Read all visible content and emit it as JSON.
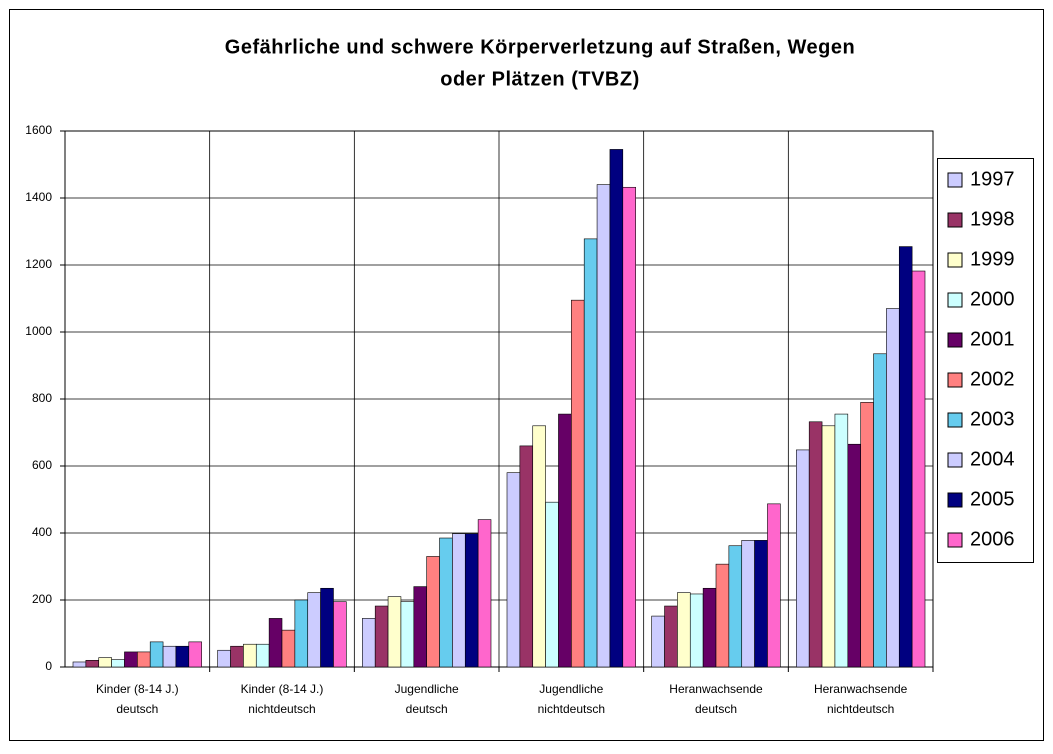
{
  "chart_data": {
    "type": "bar",
    "title": [
      "Gefährliche und schwere Körperverletzung auf Straßen, Wegen",
      "oder Plätzen (TVBZ)"
    ],
    "categories": [
      [
        "Kinder (8-14 J.)",
        "deutsch"
      ],
      [
        "Kinder (8-14 J.)",
        "nichtdeutsch"
      ],
      [
        "Jugendliche",
        "deutsch"
      ],
      [
        "Jugendliche",
        "nichtdeutsch"
      ],
      [
        "Heranwachsende",
        "deutsch"
      ],
      [
        "Heranwachsende",
        "nichtdeutsch"
      ]
    ],
    "series": [
      {
        "name": "1997",
        "color": "#ccccff",
        "values": [
          15,
          50,
          145,
          580,
          152,
          648
        ]
      },
      {
        "name": "1998",
        "color": "#993366",
        "values": [
          20,
          62,
          182,
          660,
          182,
          732
        ]
      },
      {
        "name": "1999",
        "color": "#ffffcc",
        "values": [
          28,
          68,
          210,
          720,
          222,
          720
        ]
      },
      {
        "name": "2000",
        "color": "#ccffff",
        "values": [
          22,
          68,
          195,
          492,
          218,
          755
        ]
      },
      {
        "name": "2001",
        "color": "#660066",
        "values": [
          45,
          145,
          240,
          755,
          235,
          665
        ]
      },
      {
        "name": "2002",
        "color": "#ff8080",
        "values": [
          45,
          110,
          330,
          1095,
          307,
          790
        ]
      },
      {
        "name": "2003",
        "color": "#66ccee",
        "values": [
          75,
          200,
          385,
          1278,
          362,
          935
        ]
      },
      {
        "name": "2004",
        "color": "#ccccff",
        "values": [
          62,
          222,
          398,
          1440,
          378,
          1070
        ]
      },
      {
        "name": "2005",
        "color": "#000080",
        "values": [
          62,
          235,
          398,
          1545,
          378,
          1255
        ]
      },
      {
        "name": "2006",
        "color": "#ff66cc",
        "values": [
          75,
          195,
          440,
          1432,
          487,
          1182
        ]
      }
    ],
    "ylim": [
      0,
      1600
    ],
    "yticks": [
      0,
      200,
      400,
      600,
      800,
      1000,
      1200,
      1400,
      1600
    ],
    "grid": true,
    "legend": "right"
  }
}
